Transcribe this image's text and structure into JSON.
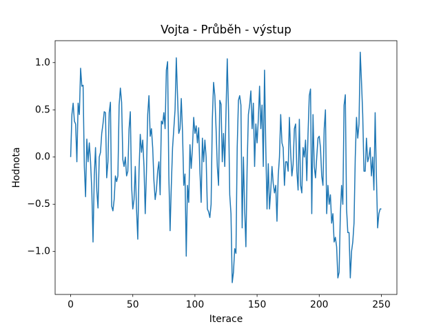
{
  "chart_data": {
    "type": "line",
    "title": "Vojta - Průběh - výstup",
    "x_label": "Iterace",
    "y_label": "Hodnota",
    "x": [
      0,
      1,
      2,
      3,
      4,
      5,
      6,
      7,
      8,
      9,
      10,
      11,
      12,
      13,
      14,
      15,
      16,
      17,
      18,
      19,
      20,
      21,
      22,
      23,
      24,
      25,
      26,
      27,
      28,
      29,
      30,
      31,
      32,
      33,
      34,
      35,
      36,
      37,
      38,
      39,
      40,
      41,
      42,
      43,
      44,
      45,
      46,
      47,
      48,
      49,
      50,
      51,
      52,
      53,
      54,
      55,
      56,
      57,
      58,
      59,
      60,
      61,
      62,
      63,
      64,
      65,
      66,
      67,
      68,
      69,
      70,
      71,
      72,
      73,
      74,
      75,
      76,
      77,
      78,
      79,
      80,
      81,
      82,
      83,
      84,
      85,
      86,
      87,
      88,
      89,
      90,
      91,
      92,
      93,
      94,
      95,
      96,
      97,
      98,
      99,
      100,
      101,
      102,
      103,
      104,
      105,
      106,
      107,
      108,
      109,
      110,
      111,
      112,
      113,
      114,
      115,
      116,
      117,
      118,
      119,
      120,
      121,
      122,
      123,
      124,
      125,
      126,
      127,
      128,
      129,
      130,
      131,
      132,
      133,
      134,
      135,
      136,
      137,
      138,
      139,
      140,
      141,
      142,
      143,
      144,
      145,
      146,
      147,
      148,
      149,
      150,
      151,
      152,
      153,
      154,
      155,
      156,
      157,
      158,
      159,
      160,
      161,
      162,
      163,
      164,
      165,
      166,
      167,
      168,
      169,
      170,
      171,
      172,
      173,
      174,
      175,
      176,
      177,
      178,
      179,
      180,
      181,
      182,
      183,
      184,
      185,
      186,
      187,
      188,
      189,
      190,
      191,
      192,
      193,
      194,
      195,
      196,
      197,
      198,
      199,
      200,
      201,
      202,
      203,
      204,
      205,
      206,
      207,
      208,
      209,
      210,
      211,
      212,
      213,
      214,
      215,
      216,
      217,
      218,
      219,
      220,
      221,
      222,
      223,
      224,
      225,
      226,
      227,
      228,
      229,
      230,
      231,
      232,
      233,
      234,
      235,
      236,
      237,
      238,
      239,
      240,
      241,
      242,
      243,
      244,
      245,
      246,
      247,
      248,
      249,
      250
    ],
    "series": [
      {
        "color": "#1f77b4",
        "values": [
          0.0,
          0.45,
          0.57,
          0.38,
          0.35,
          -0.05,
          0.57,
          0.45,
          0.94,
          0.75,
          0.76,
          -0.1,
          -0.42,
          0.19,
          -0.05,
          0.15,
          -0.05,
          -0.35,
          -0.9,
          -0.2,
          0.1,
          -0.35,
          -0.54,
          0.0,
          0.05,
          0.25,
          0.35,
          0.48,
          0.47,
          -0.22,
          -0.05,
          0.47,
          0.58,
          -0.52,
          -0.57,
          -0.45,
          -0.2,
          -0.26,
          -0.2,
          0.55,
          0.73,
          0.58,
          -0.03,
          -0.1,
          0.0,
          -0.2,
          -0.15,
          0.3,
          0.48,
          -0.3,
          -0.55,
          -0.45,
          -0.1,
          -0.55,
          -0.87,
          -0.15,
          0.24,
          0.05,
          0.18,
          -0.1,
          -0.6,
          -0.15,
          0.45,
          0.65,
          0.22,
          0.3,
          0.1,
          -0.25,
          -0.45,
          -0.35,
          -0.15,
          -0.05,
          -0.4,
          0.38,
          0.35,
          0.47,
          0.3,
          0.92,
          1.01,
          -0.2,
          -0.78,
          -0.3,
          0.1,
          0.3,
          0.5,
          1.05,
          0.65,
          0.25,
          0.3,
          0.62,
          0.27,
          -0.3,
          -0.18,
          -1.05,
          -0.3,
          -0.48,
          0.13,
          -0.12,
          0.1,
          0.42,
          0.25,
          0.33,
          0.15,
          0.31,
          -0.15,
          -0.48,
          0.2,
          -0.05,
          0.18,
          0.0,
          -0.55,
          -0.58,
          -0.64,
          -0.5,
          0.4,
          0.79,
          0.65,
          0.3,
          -0.1,
          -0.3,
          0.6,
          0.56,
          -0.05,
          0.25,
          -0.1,
          0.48,
          1.04,
          0.5,
          -0.4,
          -0.6,
          -1.33,
          -1.22,
          -0.97,
          -1.02,
          0.1,
          0.6,
          0.65,
          0.55,
          -0.75,
          0.0,
          -0.55,
          -0.95,
          -0.1,
          0.45,
          0.55,
          0.7,
          0.3,
          0.57,
          -0.1,
          0.35,
          0.15,
          0.4,
          0.75,
          0.3,
          0.55,
          -0.1,
          0.92,
          0.1,
          -0.55,
          -0.07,
          -0.55,
          -0.35,
          -0.1,
          -0.28,
          -0.38,
          -0.3,
          -0.68,
          -0.2,
          0.0,
          0.45,
          0.15,
          0.1,
          -0.3,
          -0.05,
          -0.05,
          -0.15,
          0.42,
          0.05,
          -0.2,
          -0.08,
          0.3,
          0.35,
          -0.15,
          -0.35,
          0.4,
          -0.3,
          -0.38,
          0.1,
          0.0,
          0.18,
          -0.25,
          0.25,
          0.65,
          0.72,
          -0.6,
          0.45,
          -0.1,
          -0.22,
          0.0,
          0.2,
          0.22,
          0.1,
          -0.2,
          -0.3,
          0.3,
          0.5,
          -0.6,
          -0.3,
          -0.5,
          -0.4,
          -0.7,
          -0.6,
          -0.9,
          -0.85,
          -0.95,
          -1.28,
          -1.22,
          -0.6,
          -0.3,
          -0.5,
          0.55,
          0.66,
          -0.55,
          -0.8,
          -0.8,
          -1.28,
          -1.0,
          -0.9,
          -0.7,
          0.0,
          0.42,
          0.2,
          0.35,
          1.11,
          0.8,
          0.45,
          -0.15,
          -0.15,
          0.2,
          -0.05,
          0.0,
          0.1,
          -0.2,
          0.0,
          -0.35,
          0.47,
          -0.2,
          -0.75,
          -0.6,
          -0.55,
          -0.55
        ]
      }
    ],
    "xlim": [
      -12.5,
      262.5
    ],
    "xticks": [
      0,
      50,
      100,
      150,
      200,
      250
    ],
    "ylim": [
      -1.455,
      1.232
    ],
    "yticks": [
      {
        "value": -1.0,
        "label": "−1.0"
      },
      {
        "value": -0.5,
        "label": "−0.5"
      },
      {
        "value": 0,
        "label": "0.0"
      },
      {
        "value": 0.5,
        "label": "0.5"
      },
      {
        "value": 1.0,
        "label": "1.0"
      }
    ],
    "grid": false
  }
}
